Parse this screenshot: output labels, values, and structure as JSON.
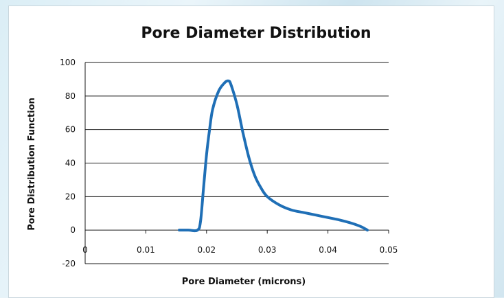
{
  "chart_data": {
    "type": "line",
    "title": "Pore Diameter Distribution",
    "xlabel": "Pore Diameter (microns)",
    "ylabel": "Pore Distribution Function",
    "xlim": [
      0,
      0.05
    ],
    "ylim": [
      -20,
      100
    ],
    "x_ticks": [
      0,
      0.01,
      0.02,
      0.03,
      0.04,
      0.05
    ],
    "y_ticks": [
      -20,
      0,
      20,
      40,
      60,
      80,
      100
    ],
    "x_tick_labels": [
      "0",
      "0.01",
      "0.02",
      "0.03",
      "0.04",
      "0.05"
    ],
    "y_tick_labels": [
      "-20",
      "0",
      "20",
      "40",
      "60",
      "80",
      "100"
    ],
    "grid": "horizontal",
    "legend": "none",
    "series": [
      {
        "color": "#1f6fb6",
        "x": [
          0.0155,
          0.017,
          0.0185,
          0.019,
          0.0195,
          0.02,
          0.0205,
          0.021,
          0.022,
          0.023,
          0.0236,
          0.024,
          0.025,
          0.026,
          0.027,
          0.028,
          0.029,
          0.03,
          0.032,
          0.034,
          0.036,
          0.038,
          0.04,
          0.042,
          0.044,
          0.0455,
          0.0465
        ],
        "y": [
          0,
          0,
          0,
          5,
          25,
          45,
          60,
          72,
          83,
          88,
          89,
          87,
          75,
          58,
          43,
          32,
          25,
          20,
          15,
          12,
          10.5,
          9,
          7.5,
          6,
          4,
          2,
          0
        ]
      }
    ]
  }
}
